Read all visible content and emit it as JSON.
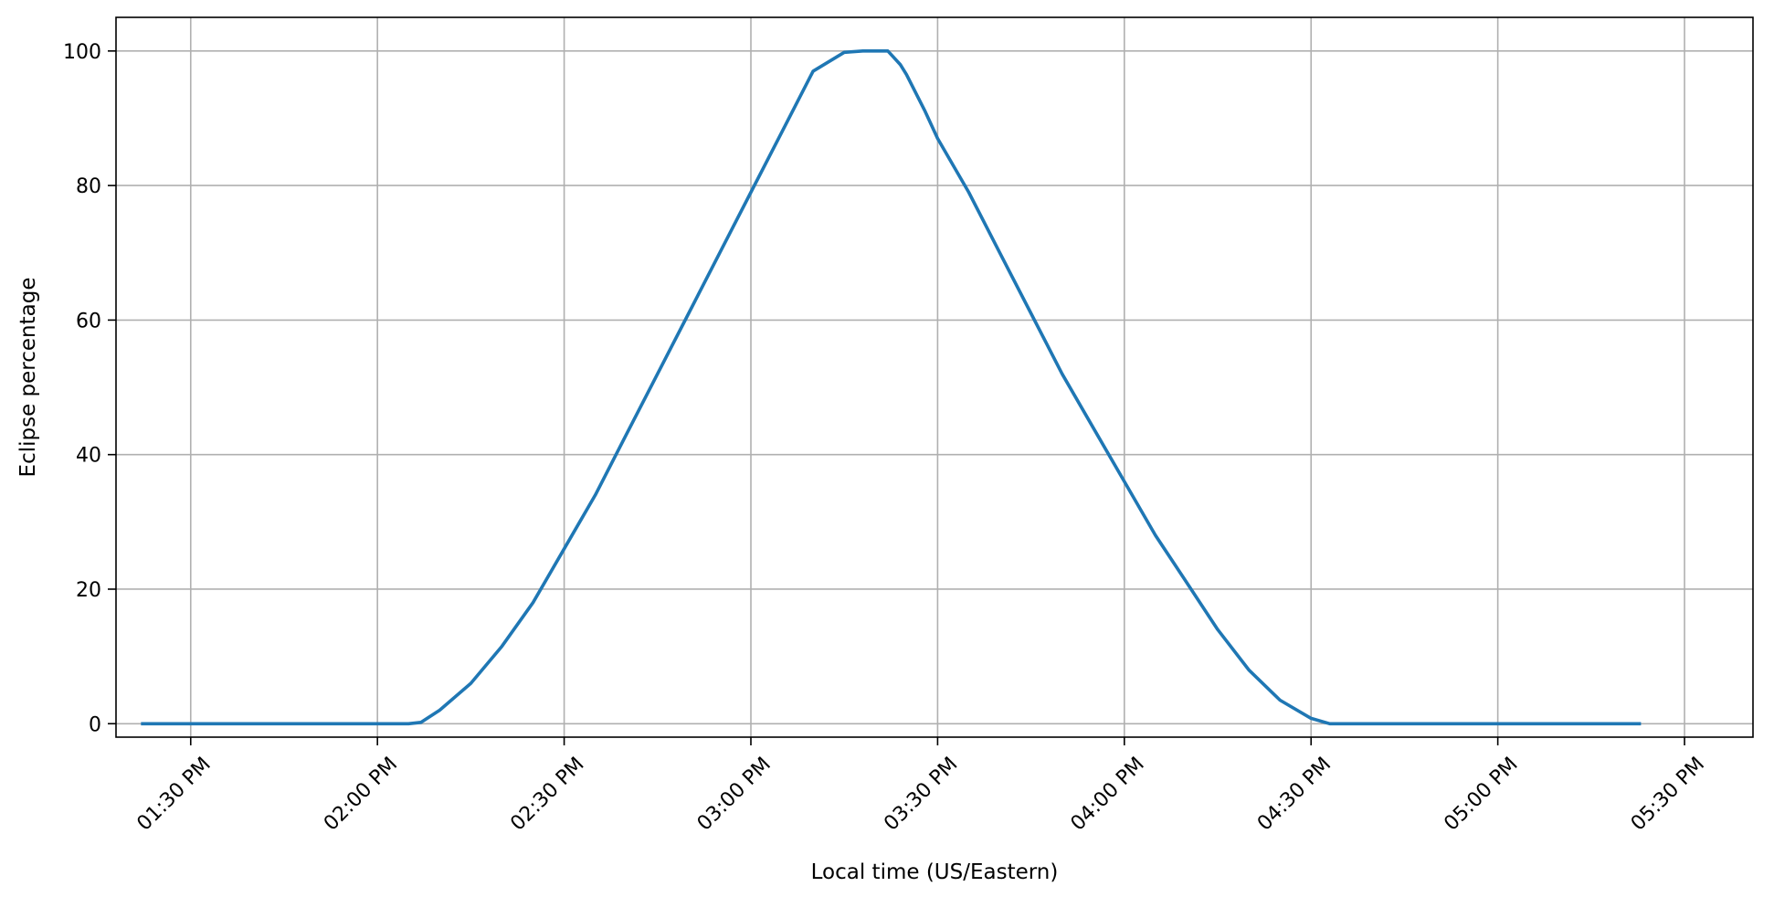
{
  "chart_data": {
    "type": "line",
    "xlabel": "Local time (US/Eastern)",
    "ylabel": "Eclipse percentage",
    "x_unit": "minutes since midnight (local time)",
    "xlim": [
      798,
      1061
    ],
    "ylim": [
      -2,
      105
    ],
    "xticks": [
      {
        "value": 810,
        "label": "01:30 PM"
      },
      {
        "value": 840,
        "label": "02:00 PM"
      },
      {
        "value": 870,
        "label": "02:30 PM"
      },
      {
        "value": 900,
        "label": "03:00 PM"
      },
      {
        "value": 930,
        "label": "03:30 PM"
      },
      {
        "value": 960,
        "label": "04:00 PM"
      },
      {
        "value": 990,
        "label": "04:30 PM"
      },
      {
        "value": 1020,
        "label": "05:00 PM"
      },
      {
        "value": 1050,
        "label": "05:30 PM"
      }
    ],
    "yticks": [
      {
        "value": 0,
        "label": "0"
      },
      {
        "value": 20,
        "label": "20"
      },
      {
        "value": 40,
        "label": "40"
      },
      {
        "value": 60,
        "label": "60"
      },
      {
        "value": 80,
        "label": "80"
      },
      {
        "value": 100,
        "label": "100"
      }
    ],
    "grid": true,
    "legend": "none",
    "series": [
      {
        "color": "#1f77b4",
        "x": [
          802,
          810,
          820,
          830,
          840,
          845,
          847,
          850,
          855,
          860,
          865,
          870,
          875,
          880,
          885,
          890,
          895,
          900,
          905,
          910,
          915,
          918,
          920,
          922,
          923,
          924,
          925,
          928,
          930,
          935,
          940,
          945,
          950,
          955,
          960,
          965,
          970,
          975,
          980,
          985,
          990,
          993,
          995,
          1000,
          1010,
          1020,
          1030,
          1040,
          1043
        ],
        "y": [
          0,
          0,
          0,
          0,
          0,
          0,
          0.2,
          2.0,
          6.0,
          11.5,
          18.0,
          26.0,
          34.0,
          43.0,
          52.0,
          61.0,
          70.0,
          79.0,
          88.0,
          97.0,
          99.8,
          100,
          100,
          100,
          99.0,
          98.0,
          96.5,
          91.0,
          87.0,
          79.0,
          70.0,
          61.0,
          52.0,
          44.0,
          36.0,
          28.0,
          21.0,
          14.0,
          8.0,
          3.5,
          0.8,
          0,
          0,
          0,
          0,
          0,
          0,
          0,
          0
        ]
      }
    ]
  }
}
